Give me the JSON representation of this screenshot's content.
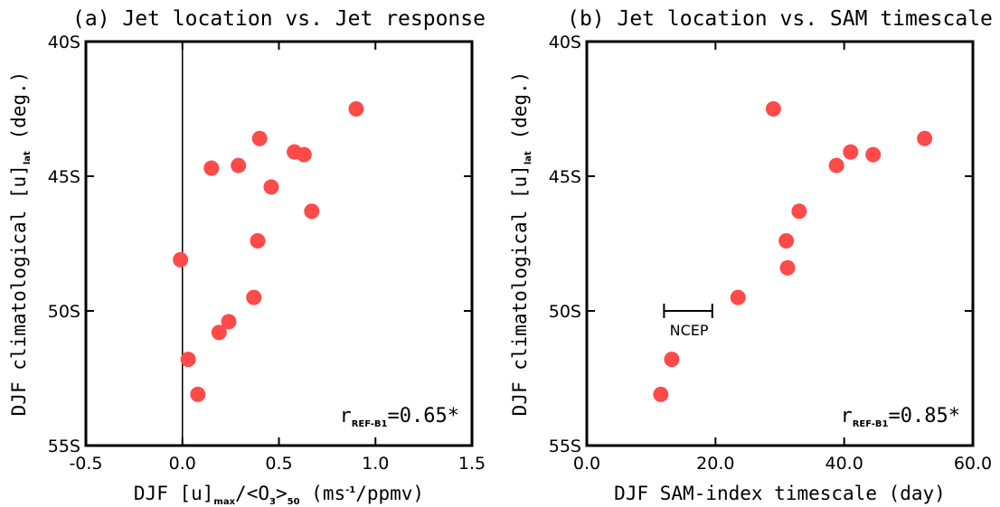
{
  "chart_data": [
    {
      "type": "scatter",
      "title": "(a) Jet location vs. Jet response",
      "xlabel_parts": [
        "DJF [u]",
        "max",
        "/<O",
        "3",
        ">",
        "50",
        " (ms",
        "-1",
        "/ppmv)"
      ],
      "ylabel_parts": [
        "DJF climatological [u]",
        "lat",
        " (deg.)"
      ],
      "xlim": [
        -0.5,
        1.5
      ],
      "ylim": [
        55,
        40
      ],
      "x_ticks": [
        -0.5,
        0.0,
        0.5,
        1.0,
        1.5
      ],
      "x_tick_labels": [
        "-0.5",
        "0.0",
        "0.5",
        "1.0",
        "1.5"
      ],
      "y_ticks": [
        40,
        45,
        50,
        55
      ],
      "y_tick_labels": [
        "40S",
        "45S",
        "50S",
        "55S"
      ],
      "zero_line": true,
      "points": [
        {
          "x": 0.9,
          "y": 42.5
        },
        {
          "x": 0.4,
          "y": 43.6
        },
        {
          "x": 0.58,
          "y": 44.1
        },
        {
          "x": 0.63,
          "y": 44.2
        },
        {
          "x": 0.29,
          "y": 44.6
        },
        {
          "x": 0.15,
          "y": 44.7
        },
        {
          "x": 0.46,
          "y": 45.4
        },
        {
          "x": 0.67,
          "y": 46.3
        },
        {
          "x": 0.39,
          "y": 47.4
        },
        {
          "x": -0.01,
          "y": 48.1
        },
        {
          "x": 0.37,
          "y": 49.5
        },
        {
          "x": 0.24,
          "y": 50.4
        },
        {
          "x": 0.19,
          "y": 50.8
        },
        {
          "x": 0.03,
          "y": 51.8
        },
        {
          "x": 0.08,
          "y": 53.1
        }
      ],
      "corr_label": {
        "r": "r",
        "sub": "REF-B1",
        "value": "=0.65*"
      }
    },
    {
      "type": "scatter",
      "title": "(b) Jet location vs. SAM timescale",
      "xlabel_parts": [
        "DJF SAM-index timescale (day)"
      ],
      "ylabel_parts": [
        "DJF climatological [u]",
        "lat",
        " (deg.)"
      ],
      "xlim": [
        0,
        60
      ],
      "ylim": [
        55,
        40
      ],
      "x_ticks": [
        0,
        20,
        40,
        60
      ],
      "x_tick_labels": [
        "0.0",
        "20.0",
        "40.0",
        "60.0"
      ],
      "y_ticks": [
        40,
        45,
        50,
        55
      ],
      "y_tick_labels": [
        "40S",
        "45S",
        "50S",
        "55S"
      ],
      "zero_line": false,
      "points": [
        {
          "x": 29.0,
          "y": 42.5
        },
        {
          "x": 52.5,
          "y": 43.6
        },
        {
          "x": 41.0,
          "y": 44.1
        },
        {
          "x": 44.5,
          "y": 44.2
        },
        {
          "x": 38.8,
          "y": 44.6
        },
        {
          "x": 33.0,
          "y": 46.3
        },
        {
          "x": 31.0,
          "y": 47.4
        },
        {
          "x": 31.2,
          "y": 48.4
        },
        {
          "x": 23.5,
          "y": 49.5
        },
        {
          "x": 13.2,
          "y": 51.8
        },
        {
          "x": 11.5,
          "y": 53.1
        }
      ],
      "range_bar": {
        "label": "NCEP",
        "x_from": 12.0,
        "x_to": 19.5,
        "y": 50.0
      },
      "corr_label": {
        "r": "r",
        "sub": "REF-B1",
        "value": "=0.85*"
      }
    }
  ],
  "colors": {
    "point": "#ff4a4a",
    "axis": "#000000"
  }
}
